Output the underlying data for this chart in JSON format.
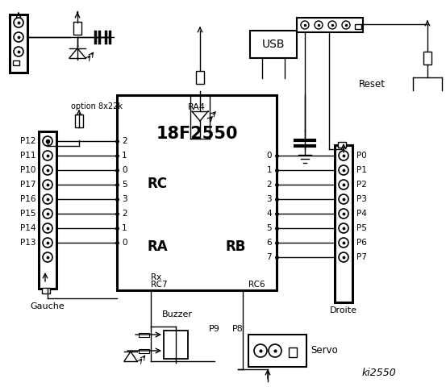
{
  "bg_color": "#ffffff",
  "chip_label": "18F2550",
  "chip_label2": "RA4",
  "rc_label": "RC",
  "ra_label": "RA",
  "rb_label": "RB",
  "rc7_label": "RC7",
  "rc6_label": "RC6",
  "rx_label": "Rx",
  "usb_label": "USB",
  "reset_label": "Reset",
  "gauche_label": "Gauche",
  "droite_label": "Droite",
  "buzzer_label": "Buzzer",
  "servo_label": "Servo",
  "ki_label": "ki2550",
  "option_label": "option 8x22k",
  "p9_label": "P9",
  "p8_label": "P8",
  "left_pins": [
    "P12",
    "P11",
    "P10",
    "P17",
    "P16",
    "P15",
    "P14",
    "P13"
  ],
  "rc_pins": [
    "2",
    "1",
    "0",
    "5",
    "3",
    "2",
    "1",
    "0"
  ],
  "rb_pins": [
    "0",
    "1",
    "2",
    "3",
    "4",
    "5",
    "6",
    "7"
  ],
  "right_pins": [
    "P0",
    "P1",
    "P2",
    "P3",
    "P4",
    "P5",
    "P6",
    "P7"
  ],
  "figw": 5.53,
  "figh": 4.8,
  "dpi": 100
}
